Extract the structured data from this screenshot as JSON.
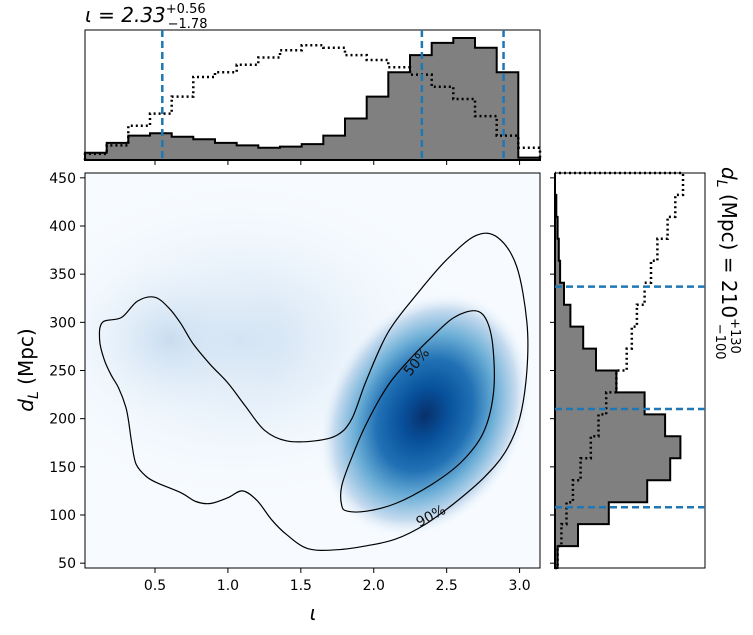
{
  "chart_data": {
    "type": "corner-plot",
    "panels": {
      "joint": {
        "type": "heatmap-with-contours",
        "xlabel": "ι",
        "ylabel_main": "d",
        "ylabel_sub": "L",
        "ylabel_unit": " (Mpc)",
        "xlim": [
          0.02,
          3.14
        ],
        "ylim": [
          45,
          455
        ],
        "xticks": [
          0.5,
          1.0,
          1.5,
          2.0,
          2.5,
          3.0
        ],
        "xtick_labels": [
          "0.5",
          "1.0",
          "1.5",
          "2.0",
          "2.5",
          "3.0"
        ],
        "yticks": [
          50,
          100,
          150,
          200,
          250,
          300,
          350,
          400,
          450
        ],
        "ytick_labels": [
          "50",
          "100",
          "150",
          "200",
          "250",
          "300",
          "350",
          "400",
          "450"
        ],
        "colormap": [
          "#f7fbff",
          "#deebf7",
          "#c6dbef",
          "#9ecae1",
          "#6baed6",
          "#4292c6",
          "#2171b5",
          "#08519c",
          "#08306b"
        ],
        "density_peak": {
          "x": 2.4,
          "y": 205
        },
        "contours": [
          {
            "label": "50%",
            "label_at": [
              2.3,
              247
            ],
            "points": [
              [
                1.78,
                110
              ],
              [
                1.82,
                104
              ],
              [
                1.95,
                104
              ],
              [
                2.15,
                112
              ],
              [
                2.4,
                132
              ],
              [
                2.6,
                155
              ],
              [
                2.75,
                185
              ],
              [
                2.82,
                225
              ],
              [
                2.82,
                270
              ],
              [
                2.78,
                300
              ],
              [
                2.7,
                312
              ],
              [
                2.55,
                305
              ],
              [
                2.4,
                285
              ],
              [
                2.25,
                262
              ],
              [
                2.1,
                235
              ],
              [
                1.95,
                195
              ],
              [
                1.85,
                160
              ],
              [
                1.78,
                130
              ]
            ]
          },
          {
            "label": "90%",
            "label_at": [
              2.25,
              105
            ],
            "points": [
              [
                0.27,
                305
              ],
              [
                0.38,
                322
              ],
              [
                0.5,
                326
              ],
              [
                0.6,
                314
              ],
              [
                0.68,
                298
              ],
              [
                0.76,
                278
              ],
              [
                0.88,
                256
              ],
              [
                1.0,
                237
              ],
              [
                1.12,
                213
              ],
              [
                1.25,
                188
              ],
              [
                1.4,
                177
              ],
              [
                1.6,
                177
              ],
              [
                1.75,
                183
              ],
              [
                1.85,
                200
              ],
              [
                1.95,
                240
              ],
              [
                2.1,
                290
              ],
              [
                2.3,
                330
              ],
              [
                2.5,
                365
              ],
              [
                2.7,
                390
              ],
              [
                2.85,
                388
              ],
              [
                2.98,
                358
              ],
              [
                3.05,
                300
              ],
              [
                3.05,
                250
              ],
              [
                3.0,
                200
              ],
              [
                2.9,
                165
              ],
              [
                2.75,
                138
              ],
              [
                2.55,
                112
              ],
              [
                2.35,
                90
              ],
              [
                2.15,
                75
              ],
              [
                1.95,
                68
              ],
              [
                1.75,
                64
              ],
              [
                1.55,
                65
              ],
              [
                1.4,
                80
              ],
              [
                1.3,
                95
              ],
              [
                1.2,
                115
              ],
              [
                1.1,
                125
              ],
              [
                1.0,
                118
              ],
              [
                0.88,
                112
              ],
              [
                0.78,
                114
              ],
              [
                0.68,
                123
              ],
              [
                0.52,
                133
              ],
              [
                0.44,
                140
              ],
              [
                0.37,
                153
              ],
              [
                0.34,
                175
              ],
              [
                0.32,
                196
              ],
              [
                0.3,
                212
              ],
              [
                0.25,
                232
              ],
              [
                0.2,
                245
              ],
              [
                0.15,
                262
              ],
              [
                0.12,
                282
              ],
              [
                0.14,
                300
              ]
            ]
          }
        ]
      },
      "top": {
        "type": "histogram",
        "title_main": "ι = 2.33",
        "title_sup": "+0.56",
        "title_subscript": "−1.78",
        "median": 2.33,
        "quantiles": [
          0.55,
          2.33,
          2.89
        ],
        "prior_density": [
          0.05,
          0.12,
          0.28,
          0.38,
          0.52,
          0.68,
          0.72,
          0.78,
          0.84,
          0.9,
          0.94,
          0.92,
          0.86,
          0.82,
          0.76,
          0.7,
          0.6,
          0.5,
          0.36,
          0.2,
          0.1
        ],
        "posterior_density": [
          0.06,
          0.14,
          0.2,
          0.22,
          0.19,
          0.17,
          0.14,
          0.12,
          0.1,
          0.11,
          0.13,
          0.2,
          0.34,
          0.52,
          0.72,
          0.86,
          0.96,
          1.0,
          0.92,
          0.72,
          0.02
        ]
      },
      "right": {
        "type": "histogram",
        "title_main": "d",
        "title_sub": "L",
        "title_unit": " (Mpc) = 210",
        "title_sup": "+130",
        "title_subscript": "−100",
        "median": 210,
        "quantiles": [
          108,
          210,
          337
        ],
        "prior_density": [
          0.02,
          0.05,
          0.09,
          0.14,
          0.2,
          0.28,
          0.34,
          0.4,
          0.48,
          0.56,
          0.6,
          0.64,
          0.7,
          0.75,
          0.8,
          0.88,
          0.94,
          1.0
        ],
        "posterior_density": [
          0.02,
          0.18,
          0.42,
          0.72,
          0.9,
          0.98,
          0.86,
          0.7,
          0.48,
          0.32,
          0.22,
          0.12,
          0.07,
          0.04,
          0.03,
          0.02,
          0.01,
          0.0
        ]
      }
    }
  }
}
